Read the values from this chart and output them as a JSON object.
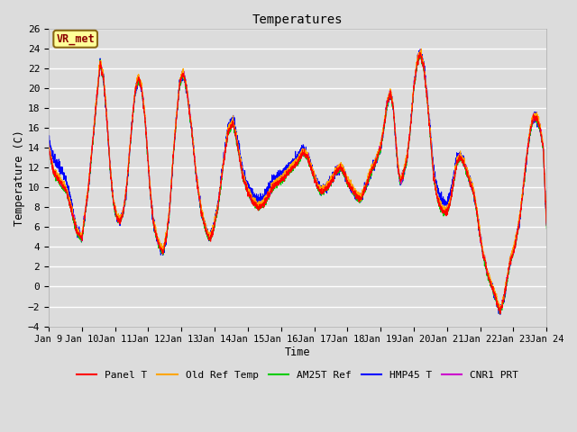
{
  "title": "Temperatures",
  "xlabel": "Time",
  "ylabel": "Temperature (C)",
  "ylim": [
    -4,
    26
  ],
  "yticks": [
    -4,
    -2,
    0,
    2,
    4,
    6,
    8,
    10,
    12,
    14,
    16,
    18,
    20,
    22,
    24,
    26
  ],
  "xtick_labels": [
    "Jan 9",
    "Jan 10",
    "Jan 11",
    "Jan 12",
    "Jan 13",
    "Jan 14",
    "Jan 15",
    "Jan 16",
    "Jan 17",
    "Jan 18",
    "Jan 19",
    "Jan 20",
    "Jan 21",
    "Jan 22",
    "Jan 23",
    "Jan 24"
  ],
  "annotation_text": "VR_met",
  "annotation_color": "#8B0000",
  "annotation_bg": "#FFFF99",
  "series_colors": {
    "Panel T": "#FF0000",
    "Old Ref Temp": "#FFA500",
    "AM25T Ref": "#00CC00",
    "HMP45 T": "#0000FF",
    "CNR1 PRT": "#CC00CC"
  },
  "bg_color": "#DCDCDC",
  "plot_bg_color": "#DCDCDC",
  "grid_color": "#FFFFFF",
  "linewidth": 0.7,
  "n_points": 3600,
  "figsize": [
    6.4,
    4.8
  ],
  "dpi": 100
}
